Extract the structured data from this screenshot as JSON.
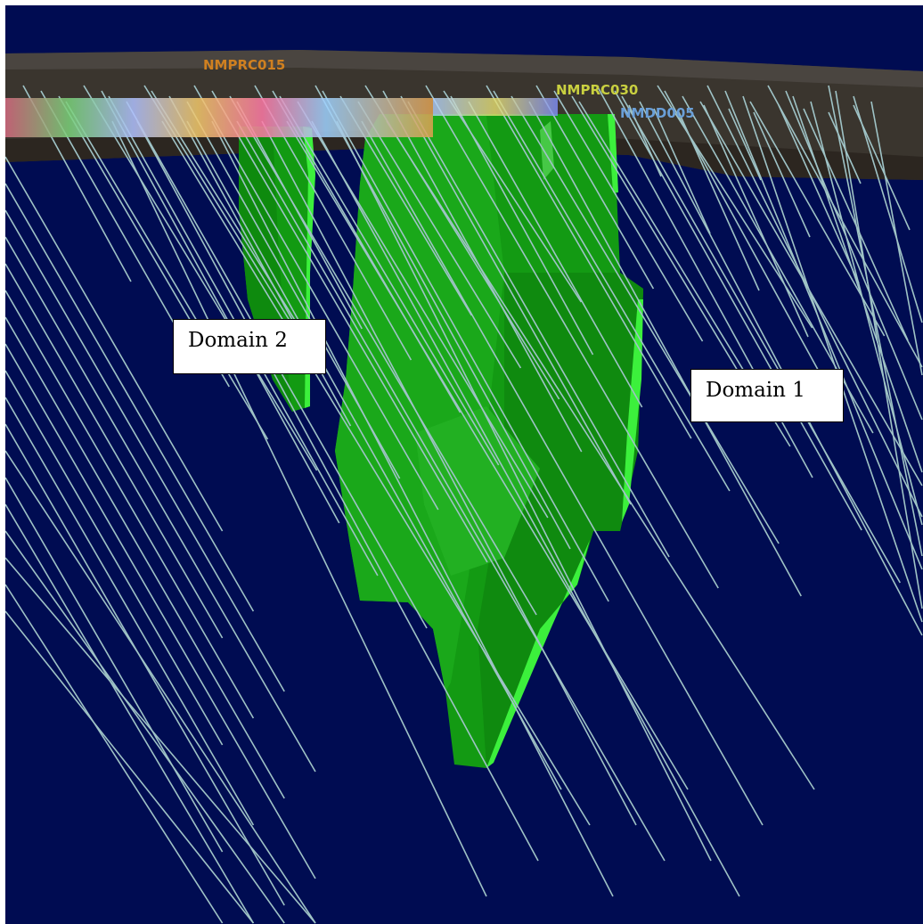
{
  "callouts": {
    "domain_2": "Domain 2",
    "domain_1": "Domain 1"
  },
  "collar_labels": [
    "NMPRC015",
    "NMPRC030",
    "NMDD005"
  ],
  "colors": {
    "background": "#000c52",
    "topography": "#3a352e",
    "ore_body": "#14a014",
    "ore_highlight": "#3cf03c",
    "drillhole": "#9fc3c6",
    "label_orange": "#d08020",
    "label_blue": "#6a9fd8"
  }
}
